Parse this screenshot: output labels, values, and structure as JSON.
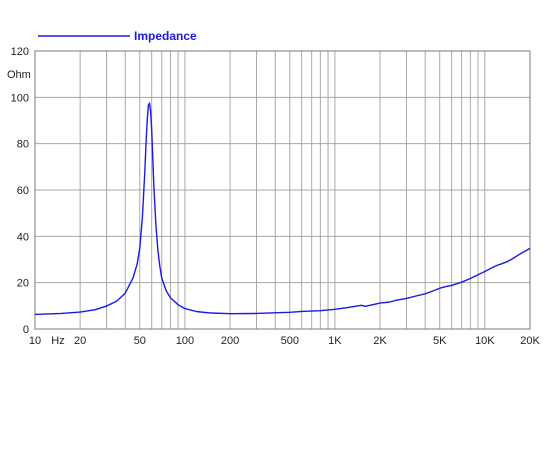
{
  "chart_data": {
    "type": "line",
    "title": "",
    "xlabel": "Hz",
    "ylabel": "Ohm",
    "x_scale": "log",
    "xlim": [
      10,
      20000
    ],
    "ylim": [
      0,
      120
    ],
    "grid": true,
    "legend_position": "top-left",
    "x_ticks": [
      {
        "value": 10,
        "label": "10"
      },
      {
        "value": 20,
        "label": "20"
      },
      {
        "value": 50,
        "label": "50"
      },
      {
        "value": 100,
        "label": "100"
      },
      {
        "value": 200,
        "label": "200"
      },
      {
        "value": 500,
        "label": "500"
      },
      {
        "value": 1000,
        "label": "1K"
      },
      {
        "value": 2000,
        "label": "2K"
      },
      {
        "value": 5000,
        "label": "5K"
      },
      {
        "value": 10000,
        "label": "10K"
      },
      {
        "value": 20000,
        "label": "20K"
      }
    ],
    "y_ticks": [
      0,
      20,
      40,
      60,
      80,
      100,
      120
    ],
    "series": [
      {
        "name": "Impedance",
        "color": "#1a1ae6",
        "x": [
          10,
          15,
          20,
          25,
          30,
          35,
          40,
          45,
          48,
          50,
          52,
          54,
          55,
          56,
          57,
          58,
          59,
          60,
          62,
          64,
          66,
          68,
          70,
          75,
          80,
          90,
          100,
          120,
          150,
          200,
          300,
          500,
          600,
          800,
          1000,
          1200,
          1500,
          1600,
          2000,
          2300,
          2600,
          3000,
          3500,
          4000,
          4500,
          5000,
          5500,
          6000,
          7000,
          8000,
          9000,
          10000,
          11000,
          12000,
          13000,
          14000,
          15000,
          17000,
          20000
        ],
        "y": [
          6.3,
          6.7,
          7.3,
          8.3,
          9.9,
          12.0,
          15.5,
          22.0,
          28.0,
          35.0,
          48.0,
          68.0,
          80.0,
          90.0,
          96.5,
          97.5,
          94.0,
          86.0,
          62.0,
          45.0,
          34.0,
          27.0,
          22.0,
          16.5,
          13.5,
          10.5,
          8.8,
          7.5,
          6.9,
          6.6,
          6.7,
          7.2,
          7.6,
          7.9,
          8.5,
          9.2,
          10.2,
          9.8,
          11.2,
          11.6,
          12.5,
          13.2,
          14.3,
          15.2,
          16.4,
          17.6,
          18.3,
          18.8,
          20.2,
          21.8,
          23.4,
          24.8,
          26.2,
          27.4,
          28.2,
          29.0,
          30.0,
          32.2,
          34.8
        ]
      }
    ]
  }
}
